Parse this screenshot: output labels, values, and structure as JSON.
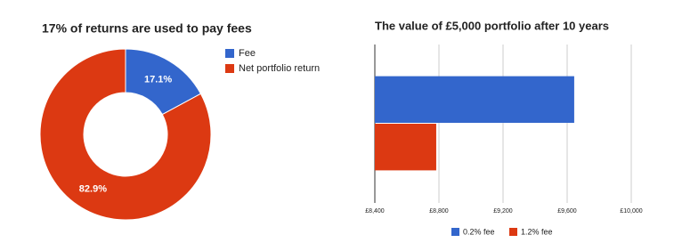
{
  "chart_data": [
    {
      "type": "pie",
      "title": "17% of returns are used to pay fees",
      "categories": [
        "Fee",
        "Net portfolio return"
      ],
      "values": [
        17.1,
        82.9
      ],
      "value_labels": [
        "17.1%",
        "82.9%"
      ],
      "colors": [
        "#3366cc",
        "#dc3912"
      ],
      "donut": true,
      "legend": "right"
    },
    {
      "type": "bar",
      "orientation": "horizontal",
      "title": "The value of £5,000 portfolio after 10 years",
      "categories": [
        null
      ],
      "series": [
        {
          "name": "0.2% fee",
          "color": "#3366cc",
          "values": [
            9644
          ]
        },
        {
          "name": "1.2% fee",
          "color": "#dc3912",
          "values": [
            8783
          ]
        }
      ],
      "xlim": [
        8400,
        10000
      ],
      "xticks": [
        {
          "value": 8400,
          "label": "£8,400"
        },
        {
          "value": 8800,
          "label": "£8,800"
        },
        {
          "value": 9200,
          "label": "£9,200"
        },
        {
          "value": 9600,
          "label": "£9,600"
        },
        {
          "value": 10000,
          "label": "£10,000"
        }
      ],
      "grid": true,
      "legend": "bottom"
    }
  ]
}
